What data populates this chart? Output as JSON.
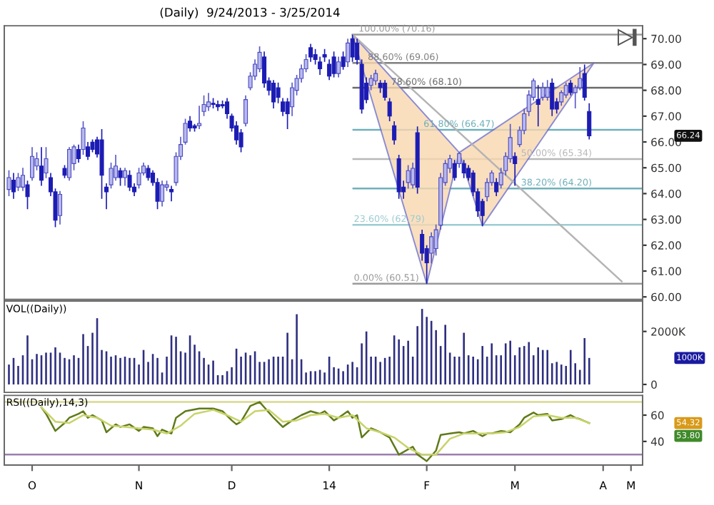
{
  "chart_data": [
    {
      "type": "candlestick",
      "title": "(Daily)  9/24/2013 - 3/25/2014",
      "categories": [
        null,
        null,
        null,
        null,
        null,
        null,
        null,
        null,
        null,
        null,
        null,
        null,
        null,
        null,
        null,
        null,
        null,
        null,
        null,
        null,
        null,
        null,
        null,
        null,
        null,
        null,
        null,
        null,
        null,
        null,
        null,
        null,
        null,
        null,
        null,
        null,
        null,
        null,
        null,
        null,
        null,
        null,
        null,
        null,
        null,
        null,
        null,
        null,
        null,
        null,
        null,
        null,
        null,
        null,
        null,
        null,
        null,
        null,
        null,
        null,
        null,
        null,
        null,
        null,
        null,
        null,
        null,
        null,
        null,
        null,
        null,
        null,
        null,
        null,
        null,
        null,
        null,
        null,
        null,
        null,
        null,
        null,
        null,
        null,
        null,
        null,
        null,
        null,
        null,
        null,
        null,
        null,
        null,
        null,
        null,
        null,
        null,
        null,
        null,
        null,
        null,
        null,
        null,
        null,
        null,
        null,
        null,
        null,
        null,
        null,
        null,
        null,
        null,
        null,
        null,
        null,
        null,
        null,
        null,
        null,
        null,
        null,
        null,
        null,
        null,
        null,
        null,
        null,
        null,
        null,
        null,
        null,
        null,
        null,
        null,
        null,
        null
      ],
      "ohlc": [
        [
          64.16,
          64.9,
          63.9,
          64.62
        ],
        [
          64.52,
          64.8,
          63.8,
          64.07
        ],
        [
          64.25,
          64.8,
          64.1,
          64.62
        ],
        [
          64.25,
          65.0,
          64.1,
          64.71
        ],
        [
          64.34,
          64.5,
          63.4,
          63.88
        ],
        [
          64.62,
          65.8,
          64.5,
          65.44
        ],
        [
          65.07,
          65.6,
          64.9,
          65.35
        ],
        [
          65.07,
          65.8,
          64.3,
          64.52
        ],
        [
          64.8,
          65.8,
          64.6,
          65.35
        ],
        [
          64.62,
          64.8,
          63.9,
          64.07
        ],
        [
          64.07,
          64.2,
          62.7,
          62.97
        ],
        [
          63.15,
          64.1,
          62.8,
          63.97
        ],
        [
          64.98,
          65.1,
          64.6,
          64.71
        ],
        [
          64.62,
          65.8,
          64.5,
          65.71
        ],
        [
          65.16,
          65.9,
          64.9,
          65.81
        ],
        [
          65.71,
          65.9,
          65.2,
          65.35
        ],
        [
          65.71,
          66.8,
          65.5,
          66.54
        ],
        [
          65.81,
          66.0,
          65.3,
          65.44
        ],
        [
          65.99,
          66.1,
          65.6,
          65.71
        ],
        [
          66.08,
          66.2,
          65.4,
          65.53
        ],
        [
          66.08,
          66.5,
          63.8,
          64.71
        ],
        [
          64.25,
          64.4,
          63.4,
          64.07
        ],
        [
          64.34,
          65.2,
          64.2,
          64.98
        ],
        [
          64.62,
          65.5,
          64.5,
          65.07
        ],
        [
          64.89,
          65.0,
          64.3,
          64.62
        ],
        [
          64.62,
          65.0,
          64.3,
          64.89
        ],
        [
          64.71,
          64.9,
          64.1,
          64.25
        ],
        [
          64.25,
          64.4,
          63.9,
          64.07
        ],
        [
          64.34,
          65.0,
          64.2,
          64.8
        ],
        [
          64.8,
          65.2,
          64.7,
          65.07
        ],
        [
          64.98,
          65.1,
          64.5,
          64.62
        ],
        [
          64.8,
          64.9,
          64.3,
          64.43
        ],
        [
          64.43,
          64.6,
          63.4,
          63.7
        ],
        [
          63.7,
          64.5,
          63.5,
          64.34
        ],
        [
          64.25,
          64.5,
          64.1,
          64.34
        ],
        [
          64.16,
          64.3,
          63.7,
          64.07
        ],
        [
          64.43,
          65.6,
          64.3,
          65.44
        ],
        [
          65.44,
          66.2,
          65.3,
          65.9
        ],
        [
          65.99,
          66.9,
          65.9,
          66.72
        ],
        [
          66.81,
          67.0,
          66.4,
          66.54
        ],
        [
          66.63,
          66.7,
          66.4,
          66.54
        ],
        [
          66.63,
          67.4,
          66.5,
          66.72
        ],
        [
          67.18,
          67.8,
          67.0,
          67.45
        ],
        [
          67.36,
          67.9,
          67.2,
          67.55
        ],
        [
          67.5,
          67.7,
          67.3,
          67.45
        ],
        [
          67.45,
          67.6,
          67.2,
          67.36
        ],
        [
          67.45,
          67.6,
          67.3,
          67.4
        ],
        [
          67.55,
          67.7,
          66.9,
          67.09
        ],
        [
          67.0,
          67.1,
          66.4,
          66.54
        ],
        [
          66.63,
          66.8,
          65.9,
          66.08
        ],
        [
          66.36,
          66.5,
          65.6,
          65.81
        ],
        [
          66.72,
          67.8,
          66.6,
          67.64
        ],
        [
          68.1,
          68.7,
          68.0,
          68.55
        ],
        [
          68.55,
          69.2,
          68.4,
          69.01
        ],
        [
          68.83,
          69.7,
          68.7,
          69.47
        ],
        [
          69.29,
          69.5,
          68.1,
          68.28
        ],
        [
          68.37,
          68.5,
          67.8,
          68.0
        ],
        [
          68.28,
          68.4,
          67.3,
          67.55
        ],
        [
          68.1,
          68.3,
          67.5,
          67.73
        ],
        [
          67.55,
          67.7,
          67.0,
          67.18
        ],
        [
          67.55,
          67.7,
          66.5,
          67.09
        ],
        [
          67.36,
          68.3,
          67.0,
          68.1
        ],
        [
          68.0,
          68.6,
          67.8,
          68.46
        ],
        [
          68.46,
          69.0,
          68.3,
          68.83
        ],
        [
          68.83,
          69.4,
          68.7,
          69.19
        ],
        [
          69.65,
          69.8,
          69.1,
          69.29
        ],
        [
          69.38,
          69.6,
          69.0,
          69.19
        ],
        [
          69.1,
          69.3,
          68.6,
          68.83
        ],
        [
          69.38,
          69.6,
          69.1,
          69.29
        ],
        [
          69.01,
          69.2,
          68.4,
          68.55
        ],
        [
          69.29,
          69.5,
          68.5,
          68.65
        ],
        [
          68.65,
          69.3,
          68.5,
          69.1
        ],
        [
          69.29,
          69.5,
          68.8,
          68.92
        ],
        [
          69.1,
          70.0,
          68.9,
          69.83
        ],
        [
          70.0,
          70.16,
          69.1,
          69.29
        ],
        [
          69.83,
          70.0,
          69.0,
          69.19
        ],
        [
          69.01,
          69.2,
          67.1,
          67.27
        ],
        [
          68.28,
          68.5,
          67.5,
          67.64
        ],
        [
          68.19,
          68.6,
          68.0,
          68.46
        ],
        [
          68.37,
          68.8,
          68.2,
          68.65
        ],
        [
          68.28,
          68.4,
          67.9,
          68.1
        ],
        [
          68.28,
          68.4,
          67.6,
          67.73
        ],
        [
          67.55,
          67.7,
          66.8,
          67.0
        ],
        [
          66.63,
          66.8,
          65.9,
          66.08
        ],
        [
          65.35,
          65.5,
          63.8,
          64.07
        ],
        [
          64.25,
          64.5,
          63.8,
          64.07
        ],
        [
          64.43,
          65.1,
          64.2,
          64.89
        ],
        [
          64.34,
          65.2,
          64.2,
          64.98
        ],
        [
          66.36,
          66.6,
          64.0,
          64.25
        ],
        [
          62.42,
          62.6,
          61.4,
          61.69
        ],
        [
          61.87,
          62.0,
          60.51,
          61.32
        ],
        [
          61.69,
          62.5,
          61.3,
          62.33
        ],
        [
          61.87,
          62.8,
          61.6,
          62.6
        ],
        [
          62.78,
          64.8,
          62.6,
          64.62
        ],
        [
          64.43,
          65.3,
          64.3,
          65.16
        ],
        [
          64.98,
          65.5,
          64.8,
          65.35
        ],
        [
          65.16,
          65.3,
          64.5,
          64.62
        ],
        [
          65.16,
          65.6,
          65.0,
          65.55
        ],
        [
          65.16,
          65.3,
          64.6,
          64.8
        ],
        [
          64.98,
          65.1,
          64.5,
          64.62
        ],
        [
          64.8,
          64.9,
          63.9,
          64.07
        ],
        [
          64.07,
          64.2,
          63.1,
          63.33
        ],
        [
          63.7,
          63.8,
          62.75,
          63.15
        ],
        [
          63.88,
          64.6,
          63.7,
          64.43
        ],
        [
          64.43,
          64.9,
          64.3,
          64.8
        ],
        [
          64.43,
          64.6,
          63.9,
          64.07
        ],
        [
          64.34,
          65.0,
          64.2,
          64.8
        ],
        [
          64.89,
          65.6,
          64.7,
          65.44
        ],
        [
          65.35,
          66.7,
          65.2,
          66.17
        ],
        [
          65.44,
          65.6,
          64.3,
          65.16
        ],
        [
          65.9,
          66.6,
          65.8,
          66.45
        ],
        [
          66.45,
          67.3,
          66.3,
          67.09
        ],
        [
          67.18,
          68.0,
          67.0,
          67.82
        ],
        [
          67.73,
          68.46,
          67.6,
          68.37
        ],
        [
          67.64,
          68.2,
          66.6,
          67.45
        ],
        [
          67.73,
          68.3,
          67.6,
          68.1
        ],
        [
          67.73,
          68.4,
          67.6,
          68.1
        ],
        [
          68.28,
          68.46,
          67.0,
          67.27
        ],
        [
          67.55,
          67.7,
          67.1,
          67.27
        ],
        [
          67.55,
          68.0,
          67.4,
          67.91
        ],
        [
          67.82,
          68.3,
          67.7,
          68.19
        ],
        [
          68.28,
          68.4,
          67.8,
          67.91
        ],
        [
          67.91,
          68.2,
          67.3,
          68.1
        ],
        [
          68.1,
          68.9,
          68.0,
          68.46
        ],
        [
          68.65,
          69.0,
          67.6,
          67.73
        ],
        [
          67.18,
          67.5,
          66.1,
          66.24
        ],
        null,
        null,
        null,
        null,
        null,
        null,
        null,
        null,
        null,
        null,
        null
      ],
      "series": [
        {
          "type": "area",
          "color": "#f9d8b0",
          "values": [
            null,
            null,
            null,
            null,
            null,
            null,
            null,
            null,
            null,
            null,
            null,
            null,
            null,
            null,
            null,
            null,
            null,
            null,
            null,
            null,
            null,
            null,
            null,
            null,
            null,
            null,
            null,
            null,
            null,
            null,
            null,
            null,
            null,
            null,
            null,
            null,
            null,
            null,
            null,
            null,
            null,
            null,
            null,
            null,
            null,
            null,
            null,
            null,
            null,
            null,
            null,
            null,
            null,
            null,
            null,
            null,
            null,
            null,
            null,
            null,
            null,
            null,
            null,
            null,
            null,
            null,
            null,
            null,
            null,
            null,
            null,
            null,
            null,
            null,
            70.16,
            null,
            null,
            null,
            null,
            null,
            null,
            null,
            null,
            null,
            null,
            null,
            null,
            null,
            null,
            null,
            60.51,
            null,
            null,
            null,
            null,
            null,
            null,
            65.59,
            null,
            null,
            null,
            null,
            62.75,
            null,
            null,
            null,
            null,
            null,
            null,
            null,
            null,
            null,
            null,
            null,
            null,
            null,
            null,
            null,
            null,
            null,
            null,
            null,
            null,
            null,
            null,
            null,
            69.06,
            null,
            null,
            null,
            null,
            null,
            null,
            null,
            null,
            null,
            null
          ]
        },
        {
          "type": "line",
          "color": "#b4b4b4",
          "values": [
            null,
            null,
            null,
            null,
            null,
            null,
            null,
            null,
            null,
            null,
            null,
            null,
            null,
            null,
            null,
            null,
            null,
            null,
            null,
            null,
            null,
            null,
            null,
            null,
            null,
            null,
            null,
            null,
            null,
            null,
            null,
            null,
            null,
            null,
            null,
            null,
            null,
            null,
            null,
            null,
            null,
            null,
            null,
            null,
            null,
            null,
            null,
            null,
            null,
            null,
            null,
            null,
            null,
            null,
            null,
            null,
            null,
            null,
            null,
            null,
            null,
            null,
            null,
            null,
            null,
            null,
            null,
            null,
            null,
            null,
            null,
            null,
            null,
            null,
            70.16,
            null,
            null,
            null,
            null,
            null,
            null,
            null,
            null,
            null,
            null,
            null,
            null,
            null,
            null,
            null,
            null,
            null,
            null,
            null,
            null,
            null,
            null,
            null,
            null,
            null,
            null,
            null,
            null,
            null,
            null,
            null,
            null,
            null,
            null,
            null,
            null,
            null,
            null,
            null,
            null,
            null,
            null,
            null,
            null,
            null,
            null,
            null,
            null,
            null,
            null,
            null,
            null,
            null,
            null,
            null,
            null,
            null,
            60.6,
            null,
            null,
            null,
            null
          ]
        }
      ],
      "ref_lines": [
        {
          "axis": "y",
          "value": 70.16,
          "label": "100.00% (70.16)",
          "color": "#9a9a9a"
        },
        {
          "axis": "y",
          "value": 69.06,
          "label": "88.60% (69.06)",
          "color": "#808080"
        },
        {
          "axis": "y",
          "value": 68.1,
          "label": "78.60% (68.10)",
          "color": "#6a6a6a"
        },
        {
          "axis": "y",
          "value": 66.47,
          "label": "61.80% (66.47)",
          "color": "#6fb0ba"
        },
        {
          "axis": "y",
          "value": 65.34,
          "label": "50.00% (65.34)",
          "color": "#b8b8b8"
        },
        {
          "axis": "y",
          "value": 64.2,
          "label": "38.20% (64.20)",
          "color": "#6fb0ba"
        },
        {
          "axis": "y",
          "value": 62.79,
          "label": "23.60% (62.79)",
          "color": "#9ccbd1"
        },
        {
          "axis": "y",
          "value": 60.51,
          "label": "0.00% (60.51)",
          "color": "#9a9a9a"
        }
      ],
      "annotations": [
        "66.24"
      ],
      "ylim": [
        59.9,
        70.5
      ],
      "yticks": [
        {
          "value": 60,
          "label": "60.00"
        },
        {
          "value": 61,
          "label": "61.00"
        },
        {
          "value": 62,
          "label": "62.00"
        },
        {
          "value": 63,
          "label": "63.00"
        },
        {
          "value": 64,
          "label": "64.00"
        },
        {
          "value": 65,
          "label": "65.00"
        },
        {
          "value": 66,
          "label": "66.00"
        },
        {
          "value": 67,
          "label": "67.00"
        },
        {
          "value": 68,
          "label": "68.00"
        },
        {
          "value": 69,
          "label": "69.00"
        },
        {
          "value": 70,
          "label": "70.00"
        }
      ],
      "tick_labels": "y"
    },
    {
      "type": "bar",
      "title": "VOL((Daily))",
      "color": "#2e2e80",
      "categories": [
        null,
        null,
        null,
        null,
        null,
        null,
        null,
        null,
        null,
        null,
        null,
        null,
        null,
        null,
        null,
        null,
        null,
        null,
        null,
        null,
        null,
        null,
        null,
        null,
        null,
        null,
        null,
        null,
        null,
        null,
        null,
        null,
        null,
        null,
        null,
        null,
        null,
        null,
        null,
        null,
        null,
        null,
        null,
        null,
        null,
        null,
        null,
        null,
        null,
        null,
        null,
        null,
        null,
        null,
        null,
        null,
        null,
        null,
        null,
        null,
        null,
        null,
        null,
        null,
        null,
        null,
        null,
        null,
        null,
        null,
        null,
        null,
        null,
        null,
        null,
        null,
        null,
        null,
        null,
        null,
        null,
        null,
        null,
        null,
        null,
        null,
        null,
        null,
        null,
        null,
        null,
        null,
        null,
        null,
        null,
        null,
        null,
        null,
        null,
        null,
        null,
        null,
        null,
        null,
        null,
        null,
        null,
        null,
        null,
        null,
        null,
        null,
        null,
        null,
        null,
        null,
        null,
        null,
        null,
        null,
        null,
        null,
        null,
        null,
        null,
        null,
        null,
        null,
        null,
        null,
        null,
        null,
        null,
        null,
        null,
        null,
        null
      ],
      "values": [
        750,
        1000,
        700,
        1100,
        1850,
        950,
        1150,
        1100,
        1200,
        1200,
        1400,
        1200,
        1000,
        950,
        1100,
        1000,
        1900,
        1450,
        1950,
        2500,
        1300,
        1250,
        1050,
        1100,
        1000,
        1050,
        1000,
        1000,
        750,
        1300,
        850,
        1150,
        1000,
        450,
        1050,
        1850,
        1800,
        1250,
        1200,
        1850,
        1500,
        1250,
        1000,
        750,
        900,
        350,
        350,
        500,
        650,
        1350,
        1050,
        1200,
        1100,
        1250,
        850,
        850,
        950,
        1050,
        1050,
        1050,
        1950,
        950,
        2650,
        950,
        450,
        500,
        500,
        550,
        450,
        1050,
        650,
        600,
        500,
        750,
        850,
        650,
        1550,
        2000,
        1050,
        1050,
        850,
        1000,
        1050,
        1850,
        1700,
        1450,
        1650,
        1050,
        2200,
        2850,
        2550,
        2400,
        2050,
        1450,
        2250,
        1200,
        1050,
        1050,
        1950,
        1100,
        1050,
        950,
        1450,
        1050,
        1550,
        1100,
        1100,
        1550,
        1650,
        1100,
        1400,
        1450,
        1600,
        1100,
        1400,
        1300,
        1300,
        800,
        850,
        750,
        700,
        1300,
        800,
        550,
        1750,
        1000,
        null,
        null,
        null,
        null,
        null,
        null,
        null,
        null,
        null,
        null,
        null
      ],
      "annotations": [
        "1000K"
      ],
      "ylim": [
        -300,
        3150
      ],
      "yticks": [
        0,
        {
          "value": 2000,
          "label": "2000K"
        }
      ],
      "tick_labels": "y"
    },
    {
      "type": "line",
      "title": "RSI((Daily),14,3)",
      "categories": [
        null,
        null,
        null,
        null,
        null,
        "O",
        null,
        null,
        null,
        null,
        null,
        null,
        null,
        null,
        null,
        null,
        null,
        null,
        null,
        null,
        null,
        null,
        null,
        null,
        null,
        null,
        null,
        null,
        "N",
        null,
        null,
        null,
        null,
        null,
        null,
        null,
        null,
        null,
        null,
        null,
        null,
        null,
        null,
        null,
        null,
        null,
        null,
        null,
        "D",
        null,
        null,
        null,
        null,
        null,
        null,
        null,
        null,
        null,
        null,
        null,
        null,
        null,
        null,
        null,
        null,
        null,
        null,
        null,
        null,
        "14",
        null,
        null,
        null,
        null,
        null,
        null,
        null,
        null,
        null,
        null,
        null,
        null,
        null,
        null,
        null,
        null,
        null,
        null,
        null,
        null,
        "F",
        null,
        null,
        null,
        null,
        null,
        null,
        null,
        null,
        null,
        null,
        null,
        null,
        null,
        null,
        null,
        null,
        null,
        null,
        "M",
        null,
        null,
        null,
        null,
        null,
        null,
        null,
        null,
        null,
        null,
        null,
        null,
        null,
        null,
        null,
        null,
        null,
        null,
        "A",
        null,
        null,
        null,
        null,
        null,
        "M",
        null,
        null
      ],
      "series": [
        {
          "color": "#5f7a1a",
          "values": [
            null,
            null,
            null,
            null,
            null,
            null,
            null,
            66,
            61,
            null,
            48,
            null,
            54,
            58,
            null,
            61,
            63,
            58,
            60,
            null,
            56,
            47,
            null,
            53,
            51,
            null,
            53,
            null,
            48,
            51,
            null,
            50,
            44,
            49,
            null,
            46,
            58,
            null,
            63,
            null,
            null,
            65,
            null,
            null,
            65,
            null,
            63,
            null,
            56,
            53,
            55,
            null,
            67,
            null,
            70,
            66,
            null,
            58,
            null,
            51,
            null,
            56,
            null,
            60,
            null,
            63,
            null,
            61,
            63,
            null,
            56,
            58,
            null,
            63,
            58,
            60,
            43,
            null,
            50,
            null,
            47,
            null,
            43,
            null,
            30,
            null,
            null,
            36,
            30,
            null,
            25,
            null,
            33,
            45,
            null,
            46,
            null,
            47,
            46,
            null,
            48,
            null,
            44,
            46,
            46,
            null,
            48,
            null,
            47,
            null,
            53,
            58,
            null,
            62,
            60,
            null,
            61,
            56,
            null,
            57,
            null,
            60,
            58,
            57,
            null,
            54,
            null,
            null,
            null,
            null,
            null,
            null,
            null,
            null,
            null,
            null,
            null
          ]
        },
        {
          "color": "#c9d36a",
          "values": [
            null,
            null,
            null,
            null,
            null,
            null,
            null,
            66,
            null,
            null,
            55,
            null,
            null,
            54,
            null,
            null,
            60,
            null,
            null,
            58,
            null,
            null,
            52,
            null,
            null,
            51,
            null,
            null,
            50,
            null,
            null,
            49,
            null,
            null,
            46,
            null,
            null,
            52,
            null,
            null,
            61,
            null,
            null,
            null,
            64,
            null,
            null,
            60,
            null,
            null,
            55,
            null,
            null,
            63,
            null,
            null,
            64,
            null,
            null,
            55,
            null,
            null,
            56,
            null,
            null,
            60,
            null,
            null,
            61,
            null,
            null,
            58,
            null,
            null,
            60,
            null,
            null,
            50,
            null,
            null,
            47,
            null,
            null,
            43,
            null,
            null,
            35,
            null,
            null,
            30,
            null,
            null,
            30,
            null,
            null,
            42,
            null,
            null,
            46,
            null,
            null,
            46,
            null,
            null,
            46,
            null,
            null,
            47,
            null,
            null,
            51,
            null,
            null,
            59,
            null,
            null,
            60,
            null,
            null,
            58,
            null,
            null,
            58,
            null,
            null,
            54,
            null,
            null,
            null,
            null,
            null,
            null,
            null,
            null,
            null,
            null,
            null
          ]
        }
      ],
      "ref_lines": [
        {
          "axis": "y",
          "value": 70,
          "color": "#d8d890"
        },
        {
          "axis": "y",
          "value": 30,
          "color": "#9b7fb0"
        }
      ],
      "annotations": [
        "54.32",
        "53.80"
      ],
      "ylim": [
        22,
        75
      ],
      "yticks": [
        40,
        60
      ]
    }
  ]
}
